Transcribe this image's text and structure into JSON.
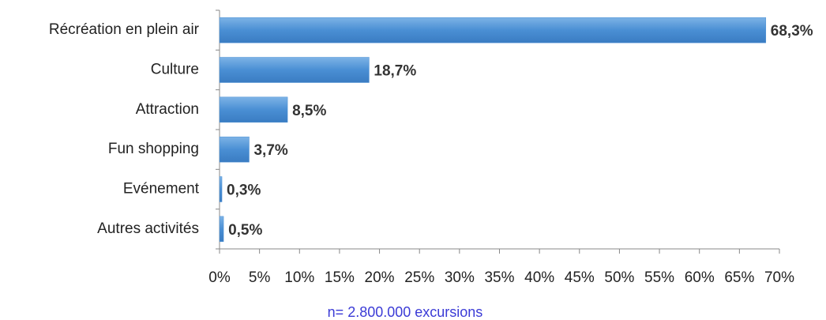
{
  "chart_data": {
    "type": "bar",
    "orientation": "horizontal",
    "categories": [
      "Récréation en plein air",
      "Culture",
      "Attraction",
      "Fun shopping",
      "Evénement",
      "Autres activités"
    ],
    "values": [
      68.3,
      18.7,
      8.5,
      3.7,
      0.3,
      0.5
    ],
    "value_labels": [
      "68,3%",
      "18,7%",
      "8,5%",
      "3,7%",
      "0,3%",
      "0,5%"
    ],
    "color": "#4a8fd4",
    "xlim": [
      0,
      70
    ],
    "xticks": [
      {
        "value": 0,
        "label": "0%"
      },
      {
        "value": 5,
        "label": "5%"
      },
      {
        "value": 10,
        "label": "10%"
      },
      {
        "value": 15,
        "label": "15%"
      },
      {
        "value": 20,
        "label": "20%"
      },
      {
        "value": 25,
        "label": "25%"
      },
      {
        "value": 30,
        "label": "30%"
      },
      {
        "value": 35,
        "label": "35%"
      },
      {
        "value": 40,
        "label": "40%"
      },
      {
        "value": 45,
        "label": "45%"
      },
      {
        "value": 50,
        "label": "50%"
      },
      {
        "value": 55,
        "label": "55%"
      },
      {
        "value": 60,
        "label": "60%"
      },
      {
        "value": 65,
        "label": "65%"
      },
      {
        "value": 70,
        "label": "70%"
      }
    ],
    "annotation": "n= 2.800.000 excursions",
    "grid": false
  }
}
